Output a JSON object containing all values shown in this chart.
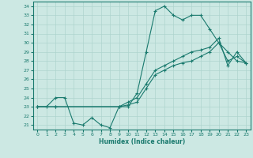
{
  "xlabel": "Humidex (Indice chaleur)",
  "xlim": [
    -0.5,
    23.5
  ],
  "ylim": [
    20.5,
    34.5
  ],
  "xticks": [
    0,
    1,
    2,
    3,
    4,
    5,
    6,
    7,
    8,
    9,
    10,
    11,
    12,
    13,
    14,
    15,
    16,
    17,
    18,
    19,
    20,
    21,
    22,
    23
  ],
  "yticks": [
    21,
    22,
    23,
    24,
    25,
    26,
    27,
    28,
    29,
    30,
    31,
    32,
    33,
    34
  ],
  "line_color": "#1a7a6e",
  "bg_color": "#cce8e3",
  "grid_color": "#aed4ce",
  "line1_x": [
    0,
    1,
    2,
    3,
    4,
    5,
    6,
    7,
    8,
    9,
    10,
    11,
    12,
    13,
    14,
    15,
    16,
    17,
    18,
    19,
    20,
    21,
    22,
    23
  ],
  "line1_y": [
    23,
    23,
    24,
    24,
    21.2,
    21,
    21.8,
    21,
    20.7,
    23,
    23,
    24.5,
    29,
    33.5,
    34,
    33,
    32.5,
    33,
    33,
    31.5,
    30,
    29,
    28,
    27.8
  ],
  "line2_x": [
    0,
    2,
    9,
    10,
    11,
    12,
    13,
    14,
    15,
    16,
    17,
    18,
    19,
    20,
    21,
    22,
    23
  ],
  "line2_y": [
    23,
    23,
    23,
    23.5,
    24,
    25.5,
    27,
    27.5,
    28,
    28.5,
    29,
    29.2,
    29.5,
    30.5,
    27.5,
    29,
    27.8
  ],
  "line3_x": [
    0,
    2,
    9,
    10,
    11,
    12,
    13,
    14,
    15,
    16,
    17,
    18,
    19,
    20,
    21,
    22,
    23
  ],
  "line3_y": [
    23,
    23,
    23,
    23.2,
    23.5,
    25,
    26.5,
    27,
    27.5,
    27.8,
    28,
    28.5,
    29,
    30,
    28,
    28.5,
    27.8
  ]
}
